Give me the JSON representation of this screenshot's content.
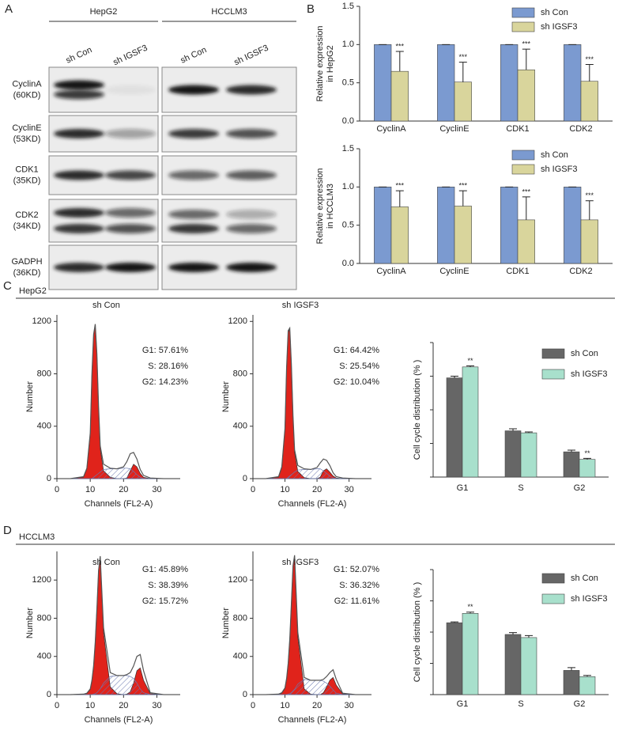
{
  "panel_labels": [
    "A",
    "B",
    "C",
    "D"
  ],
  "sections": [
    "HepG2",
    "HCCLM3"
  ],
  "blot": {
    "groups": [
      "HepG2",
      "HCCLM3"
    ],
    "lanes": [
      "sh Con",
      "sh IGSF3",
      "sh Con",
      "sh IGSF3"
    ],
    "rows": [
      [
        "CyclinA",
        "(60KD)"
      ],
      [
        "CyclinE",
        "(53KD)"
      ],
      [
        "CDK1",
        "(35KD)"
      ],
      [
        "CDK2",
        "(34KD)"
      ],
      [
        "GADPH",
        "(36KD)"
      ]
    ]
  },
  "chart_data": [
    {
      "type": "bar",
      "y_label": [
        "Relative expression",
        "in HepG2"
      ],
      "categories": [
        "CyclinA",
        "CyclinE",
        "CDK1",
        "CDK2"
      ],
      "series": [
        {
          "name": "sh Con",
          "color": "#7b9ad0",
          "values": [
            1,
            1,
            1,
            1
          ],
          "errors": [
            0,
            0,
            0,
            0
          ]
        },
        {
          "name": "sh IGSF3",
          "color": "#d9d59c",
          "values": [
            0.65,
            0.51,
            0.67,
            0.52
          ],
          "errors": [
            0.26,
            0.26,
            0.27,
            0.22
          ],
          "significance": [
            "***",
            "***",
            "***",
            "***"
          ]
        }
      ],
      "ylim": [
        0,
        1.5
      ],
      "yticks": [
        {
          "value": 0,
          "label": "0.0"
        },
        0.5,
        {
          "value": 1,
          "label": "1.0"
        },
        1.5
      ],
      "legend": "upper right"
    },
    {
      "type": "bar",
      "y_label": [
        "Relative expression",
        "in HCCLM3"
      ],
      "categories": [
        "CyclinA",
        "CyclinE",
        "CDK1",
        "CDK2"
      ],
      "series": [
        {
          "name": "sh Con",
          "color": "#7b9ad0",
          "values": [
            1,
            1,
            1,
            1
          ],
          "errors": [
            0,
            0,
            0,
            0
          ]
        },
        {
          "name": "sh IGSF3",
          "color": "#d9d59c",
          "values": [
            0.74,
            0.75,
            0.57,
            0.57
          ],
          "errors": [
            0.21,
            0.2,
            0.3,
            0.25
          ],
          "significance": [
            "***",
            "***",
            "***",
            "***"
          ]
        }
      ],
      "ylim": [
        0,
        1.5
      ],
      "yticks": [
        {
          "value": 0,
          "label": "0.0"
        },
        0.5,
        {
          "value": 1,
          "label": "1.0"
        },
        1.5
      ],
      "legend": "upper right"
    },
    {
      "type": "area",
      "subtitle": "sh Con",
      "annotations": [
        "G1: 57.61%",
        "S: 28.16%",
        "G2: 14.23%"
      ],
      "x_label": "Channels (FL2-A)",
      "y_label": "Number",
      "x": [
        4,
        8,
        9,
        10,
        10.5,
        11,
        11.5,
        12,
        12.5,
        13,
        14,
        16,
        18,
        20,
        21,
        22,
        23,
        24,
        25,
        26,
        28,
        32
      ],
      "series": [
        {
          "color": "#e0231b",
          "style": "fill",
          "values": [
            0,
            12,
            75,
            340,
            790,
            1090,
            1170,
            940,
            540,
            230,
            60,
            10,
            0,
            0,
            5,
            60,
            110,
            90,
            40,
            10,
            0,
            0
          ]
        },
        {
          "color": "#6a78b0",
          "style": "hatch",
          "values": [
            0,
            0,
            0,
            0,
            0,
            10,
            20,
            30,
            40,
            50,
            70,
            75,
            75,
            80,
            80,
            75,
            55,
            30,
            10,
            0,
            0,
            0
          ]
        },
        {
          "color": "#555555",
          "style": "line",
          "values": [
            0,
            15,
            80,
            350,
            800,
            1100,
            1180,
            950,
            550,
            250,
            110,
            80,
            75,
            90,
            130,
            190,
            200,
            150,
            70,
            25,
            5,
            0
          ]
        }
      ],
      "xlim": [
        0,
        37
      ],
      "xticks": [
        0,
        10,
        20,
        30
      ],
      "ylim": [
        0,
        1250
      ],
      "yticks": [
        0,
        400,
        800,
        1200
      ]
    },
    {
      "type": "area",
      "subtitle": "sh IGSF3",
      "annotations": [
        "G1: 64.42%",
        "S: 25.54%",
        "G2: 10.04%"
      ],
      "x_label": "Channels (FL2-A)",
      "y_label": "Number",
      "x": [
        4,
        8,
        9,
        10,
        10.5,
        11,
        11.5,
        12,
        12.5,
        13,
        14,
        16,
        18,
        20,
        21,
        22,
        23,
        24,
        25,
        26,
        28,
        32
      ],
      "series": [
        {
          "color": "#e0231b",
          "style": "fill",
          "values": [
            0,
            12,
            85,
            370,
            840,
            1120,
            1140,
            870,
            470,
            200,
            55,
            8,
            0,
            0,
            10,
            60,
            75,
            50,
            20,
            5,
            0,
            0
          ]
        },
        {
          "color": "#6a78b0",
          "style": "hatch",
          "values": [
            0,
            0,
            0,
            0,
            0,
            10,
            20,
            30,
            40,
            50,
            65,
            70,
            70,
            75,
            75,
            60,
            40,
            20,
            5,
            0,
            0,
            0
          ]
        },
        {
          "color": "#555555",
          "style": "line",
          "values": [
            0,
            15,
            90,
            380,
            850,
            1130,
            1150,
            880,
            480,
            220,
            100,
            75,
            70,
            85,
            120,
            150,
            140,
            100,
            45,
            15,
            5,
            0
          ]
        }
      ],
      "xlim": [
        0,
        37
      ],
      "xticks": [
        0,
        10,
        20,
        30
      ],
      "ylim": [
        0,
        1250
      ],
      "yticks": [
        0,
        400,
        800,
        1200
      ]
    },
    {
      "type": "bar",
      "y_label": "Cell cycle distribution (% )",
      "categories": [
        "G1",
        "S",
        "G2"
      ],
      "series": [
        {
          "name": "sh Con",
          "color": "#666666",
          "values": [
            59,
            27.5,
            15
          ],
          "errors": [
            1,
            1.2,
            1
          ]
        },
        {
          "name": "sh IGSF3",
          "color": "#a8e0cc",
          "values": [
            65.5,
            26.3,
            10.5
          ],
          "errors": [
            0.6,
            0.5,
            0.6
          ],
          "significance": [
            "**",
            null,
            "**"
          ]
        }
      ],
      "ylim": [
        0,
        80
      ],
      "yticks": [
        0,
        20,
        40,
        60,
        80
      ],
      "ytick_labels": false,
      "legend": "upper right"
    },
    {
      "type": "area",
      "subtitle": "sh Con",
      "annotations": [
        "G1: 45.89%",
        "S: 38.39%",
        "G2: 15.72%"
      ],
      "x_label": "Channels (FL2-A)",
      "y_label": "Number",
      "x": [
        4,
        8,
        9,
        10,
        10.5,
        11,
        11.5,
        12,
        12.5,
        13,
        14,
        16,
        18,
        20,
        21,
        22,
        23,
        24,
        25,
        26,
        28,
        32
      ],
      "series": [
        {
          "color": "#e0231b",
          "style": "fill",
          "values": [
            0,
            4,
            12,
            55,
            140,
            290,
            540,
            890,
            1290,
            1440,
            650,
            80,
            10,
            0,
            5,
            30,
            120,
            250,
            280,
            150,
            10,
            0
          ]
        },
        {
          "color": "#6a78b0",
          "style": "hatch",
          "values": [
            0,
            0,
            0,
            0,
            0,
            5,
            10,
            20,
            40,
            60,
            120,
            190,
            200,
            200,
            200,
            190,
            170,
            120,
            60,
            20,
            0,
            0
          ]
        },
        {
          "color": "#555555",
          "style": "line",
          "values": [
            0,
            5,
            15,
            60,
            150,
            300,
            550,
            900,
            1300,
            1450,
            700,
            230,
            200,
            200,
            210,
            230,
            300,
            400,
            420,
            250,
            20,
            0
          ]
        }
      ],
      "xlim": [
        0,
        37
      ],
      "xticks": [
        0,
        10,
        20,
        30
      ],
      "ylim": [
        0,
        1500
      ],
      "yticks": [
        0,
        400,
        800,
        1200
      ]
    },
    {
      "type": "area",
      "subtitle": "sh IGSF3",
      "annotations": [
        "G1: 52.07%",
        "S: 36.32%",
        "G2: 11.61%"
      ],
      "x_label": "Channels (FL2-A)",
      "y_label": "Number",
      "x": [
        4,
        8,
        9,
        10,
        10.5,
        11,
        11.5,
        12,
        12.5,
        13,
        14,
        16,
        18,
        20,
        21,
        22,
        23,
        24,
        25,
        26,
        28,
        32
      ],
      "series": [
        {
          "color": "#e0231b",
          "style": "fill",
          "values": [
            0,
            4,
            15,
            65,
            160,
            320,
            570,
            940,
            1340,
            1450,
            600,
            60,
            5,
            0,
            0,
            20,
            80,
            150,
            180,
            100,
            8,
            0
          ]
        },
        {
          "color": "#6a78b0",
          "style": "hatch",
          "values": [
            0,
            0,
            0,
            0,
            0,
            5,
            10,
            20,
            40,
            55,
            110,
            160,
            150,
            150,
            150,
            140,
            120,
            90,
            50,
            15,
            0,
            0
          ]
        },
        {
          "color": "#555555",
          "style": "line",
          "values": [
            0,
            5,
            20,
            70,
            170,
            330,
            580,
            950,
            1350,
            1460,
            650,
            180,
            150,
            150,
            150,
            160,
            190,
            230,
            260,
            160,
            15,
            0
          ]
        }
      ],
      "xlim": [
        0,
        37
      ],
      "xticks": [
        0,
        10,
        20,
        30
      ],
      "ylim": [
        0,
        1500
      ],
      "yticks": [
        0,
        400,
        800,
        1200
      ]
    },
    {
      "type": "bar",
      "y_label": "Cell cycle distribution (% )",
      "categories": [
        "G1",
        "S",
        "G2"
      ],
      "series": [
        {
          "name": "sh Con",
          "color": "#666666",
          "values": [
            46,
            38.5,
            15.5
          ],
          "errors": [
            0.5,
            1.2,
            1.8
          ]
        },
        {
          "name": "sh IGSF3",
          "color": "#a8e0cc",
          "values": [
            52,
            36.5,
            11.5
          ],
          "errors": [
            0.8,
            1.3,
            0.8
          ],
          "significance": [
            "**",
            null,
            null
          ]
        }
      ],
      "ylim": [
        0,
        80
      ],
      "yticks": [
        0,
        20,
        40,
        60,
        80
      ],
      "ytick_labels": false,
      "legend": "upper right"
    }
  ]
}
